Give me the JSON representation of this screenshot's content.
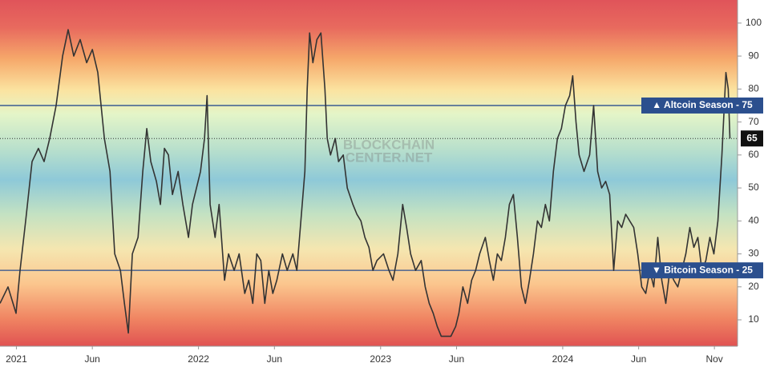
{
  "chart_data": {
    "type": "line",
    "watermark": [
      "BLOCKCHAIN",
      "CENTER.NET"
    ],
    "x": [
      2020.91,
      2020.954,
      2020.998,
      2021.02,
      2021.051,
      2021.086,
      2021.121,
      2021.152,
      2021.183,
      2021.218,
      2021.254,
      2021.284,
      2021.315,
      2021.35,
      2021.386,
      2021.417,
      2021.447,
      2021.483,
      2021.514,
      2021.54,
      2021.571,
      2021.593,
      2021.615,
      2021.637,
      2021.668,
      2021.694,
      2021.716,
      2021.738,
      2021.769,
      2021.791,
      2021.813,
      2021.835,
      2021.857,
      2021.888,
      2021.914,
      2021.945,
      2021.967,
      2021.989,
      2022.011,
      2022.033,
      2022.047,
      2022.064,
      2022.091,
      2022.113,
      2022.143,
      2022.165,
      2022.196,
      2022.223,
      2022.254,
      2022.276,
      2022.298,
      2022.32,
      2022.342,
      2022.364,
      2022.386,
      2022.408,
      2022.43,
      2022.461,
      2022.487,
      2022.518,
      2022.54,
      2022.562,
      2022.584,
      2022.597,
      2022.61,
      2022.628,
      2022.65,
      2022.672,
      2022.694,
      2022.707,
      2022.725,
      2022.751,
      2022.769,
      2022.795,
      2022.817,
      2022.848,
      2022.87,
      2022.892,
      2022.914,
      2022.936,
      2022.958,
      2022.98,
      2023.016,
      2023.046,
      2023.068,
      2023.095,
      2023.121,
      2023.143,
      2023.165,
      2023.192,
      2023.223,
      2023.245,
      2023.267,
      2023.289,
      2023.311,
      2023.333,
      2023.359,
      2023.386,
      2023.412,
      2023.43,
      2023.452,
      2023.478,
      2023.5,
      2023.522,
      2023.544,
      2023.575,
      2023.597,
      2023.619,
      2023.641,
      2023.663,
      2023.685,
      2023.707,
      2023.729,
      2023.751,
      2023.773,
      2023.795,
      2023.817,
      2023.839,
      2023.861,
      2023.883,
      2023.905,
      2023.927,
      2023.949,
      2023.971,
      2023.993,
      2024.015,
      2024.038,
      2024.055,
      2024.073,
      2024.09,
      2024.117,
      2024.148,
      2024.17,
      2024.192,
      2024.214,
      2024.236,
      2024.258,
      2024.28,
      2024.302,
      2024.324,
      2024.346,
      2024.368,
      2024.39,
      2024.412,
      2024.434,
      2024.456,
      2024.478,
      2024.5,
      2024.522,
      2024.544,
      2024.566,
      2024.588,
      2024.61,
      2024.632,
      2024.654,
      2024.676,
      2024.698,
      2024.72,
      2024.742,
      2024.764,
      2024.786,
      2024.808,
      2024.83,
      2024.852,
      2024.874,
      2024.896,
      2024.909,
      2024.918
    ],
    "series": [
      {
        "color": "#333333",
        "values": [
          15,
          20,
          12,
          25,
          40,
          58,
          62,
          58,
          65,
          75,
          90,
          98,
          90,
          95,
          88,
          92,
          85,
          65,
          55,
          30,
          25,
          15,
          6,
          30,
          35,
          55,
          68,
          58,
          52,
          45,
          62,
          60,
          48,
          55,
          45,
          35,
          45,
          50,
          55,
          65,
          78,
          45,
          35,
          45,
          22,
          30,
          25,
          30,
          18,
          22,
          15,
          30,
          28,
          15,
          25,
          18,
          22,
          30,
          25,
          30,
          25,
          40,
          55,
          80,
          97,
          88,
          95,
          97,
          80,
          65,
          60,
          65,
          58,
          60,
          50,
          45,
          42,
          40,
          35,
          32,
          25,
          28,
          30,
          25,
          22,
          30,
          45,
          38,
          30,
          25,
          28,
          20,
          15,
          12,
          8,
          5,
          5,
          5,
          8,
          12,
          20,
          15,
          22,
          25,
          30,
          35,
          28,
          22,
          30,
          28,
          35,
          45,
          48,
          35,
          20,
          15,
          22,
          30,
          40,
          38,
          45,
          40,
          55,
          65,
          68,
          75,
          78,
          84,
          70,
          60,
          55,
          60,
          75,
          55,
          50,
          52,
          48,
          25,
          40,
          38,
          42,
          40,
          38,
          30,
          20,
          18,
          25,
          20,
          35,
          22,
          15,
          25,
          22,
          20,
          25,
          30,
          38,
          32,
          35,
          25,
          28,
          35,
          30,
          40,
          60,
          85,
          80,
          65
        ]
      }
    ],
    "xlim": [
      2020.91,
      2024.96
    ],
    "xticks": [
      2021,
      {
        "value": 2021.417,
        "label": "Jun"
      },
      2022,
      {
        "value": 2022.417,
        "label": "Jun"
      },
      2023,
      {
        "value": 2023.417,
        "label": "Jun"
      },
      2024,
      {
        "value": 2024.417,
        "label": "Jun"
      },
      {
        "value": 2024.833,
        "label": "Nov"
      }
    ],
    "ylim": [
      2,
      107
    ],
    "yticks": [
      10,
      20,
      30,
      40,
      50,
      60,
      70,
      80,
      90,
      100
    ],
    "thresholds": [
      {
        "value": 75,
        "label": "▲ Altcoin Season - 75"
      },
      {
        "value": 25,
        "label": "▼ Bitcoin Season - 25"
      }
    ],
    "threshold_color": "#2b4f8e",
    "current": 65
  }
}
